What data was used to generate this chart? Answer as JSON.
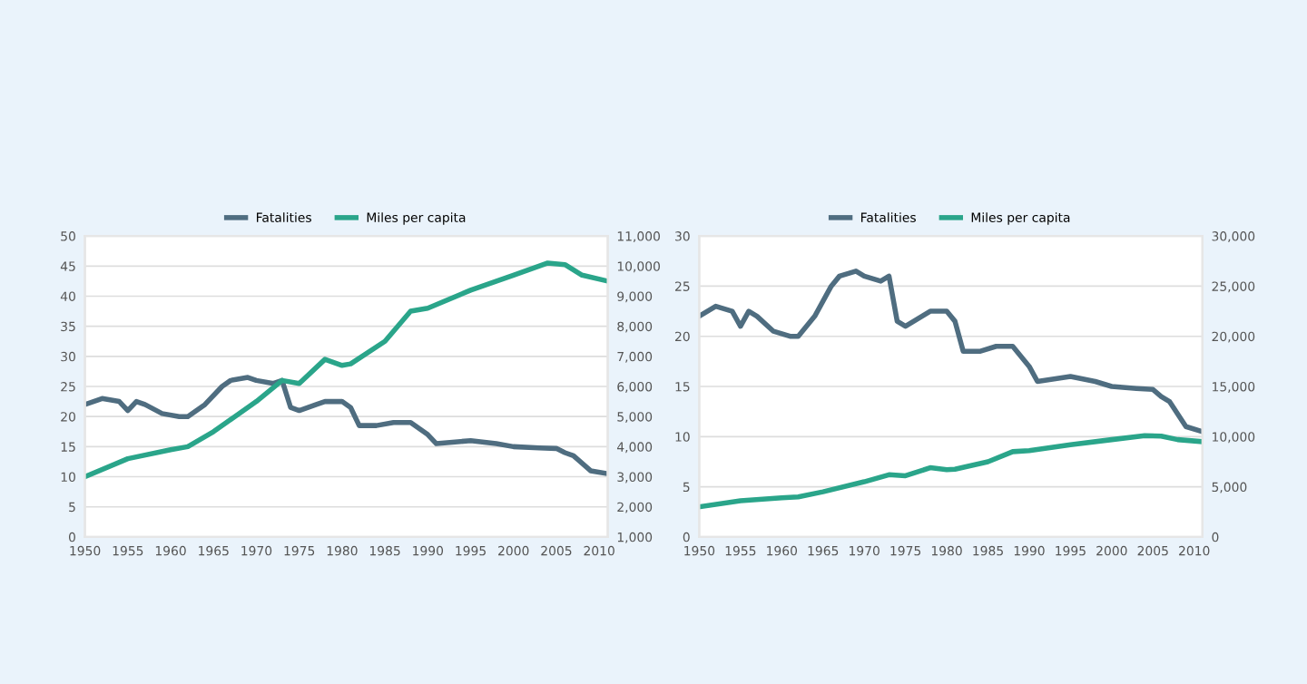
{
  "chart_data": [
    {
      "type": "line",
      "x": [
        1950,
        1952,
        1954,
        1955,
        1956,
        1957,
        1959,
        1961,
        1962,
        1964,
        1966,
        1967,
        1969,
        1970,
        1972,
        1973,
        1974,
        1975,
        1977,
        1978,
        1980,
        1981,
        1982,
        1984,
        1986,
        1988,
        1990,
        1991,
        1995,
        1998,
        2000,
        2003,
        2005,
        2006,
        2007,
        2009,
        2011
      ],
      "xlim": [
        1950,
        2011
      ],
      "xticks": [
        1950,
        1955,
        1960,
        1965,
        1970,
        1975,
        1980,
        1985,
        1990,
        1995,
        2000,
        2005,
        2010
      ],
      "ylim": [
        0,
        50
      ],
      "yticks": [
        0,
        5,
        10,
        15,
        20,
        25,
        30,
        35,
        40,
        45,
        50
      ],
      "y2lim": [
        1000,
        11000
      ],
      "y2ticks": [
        {
          "value": 1000,
          "label": "1,000"
        },
        {
          "value": 2000,
          "label": "2,000"
        },
        {
          "value": 3000,
          "label": "3,000"
        },
        {
          "value": 4000,
          "label": "4,000"
        },
        {
          "value": 5000,
          "label": "5,000"
        },
        {
          "value": 6000,
          "label": "6,000"
        },
        {
          "value": 7000,
          "label": "7,000"
        },
        {
          "value": 8000,
          "label": "8,000"
        },
        {
          "value": 9000,
          "label": "9,000"
        },
        {
          "value": 10000,
          "label": "10,000"
        },
        {
          "value": 11000,
          "label": "11,000"
        }
      ],
      "grid": "y",
      "legend": "top",
      "series": [
        {
          "name": "Fatalities",
          "color": "#4f6d80",
          "axis": "y",
          "values": [
            22,
            23,
            22.5,
            21,
            22.5,
            22,
            20.5,
            20,
            20,
            22,
            25,
            26,
            26.5,
            26,
            25.5,
            26,
            21.5,
            21,
            22,
            22.5,
            22.5,
            21.5,
            18.5,
            18.5,
            19,
            19,
            17,
            15.5,
            16,
            15.5,
            15,
            14.8,
            14.7,
            14,
            13.5,
            11,
            10.5
          ]
        },
        {
          "name": "Miles per capita",
          "color": "#2aa58a",
          "axis": "y2",
          "x": [
            1950,
            1955,
            1960,
            1962,
            1965,
            1970,
            1973,
            1975,
            1978,
            1980,
            1981,
            1985,
            1988,
            1990,
            1995,
            2000,
            2004,
            2006,
            2008,
            2011
          ],
          "values": [
            3000,
            3600,
            3900,
            4000,
            4500,
            5500,
            6200,
            6100,
            6900,
            6700,
            6750,
            7500,
            8500,
            8600,
            9200,
            9700,
            10100,
            10050,
            9700,
            9500
          ]
        }
      ]
    },
    {
      "type": "line",
      "x": [
        1950,
        1952,
        1954,
        1955,
        1956,
        1957,
        1959,
        1961,
        1962,
        1964,
        1966,
        1967,
        1969,
        1970,
        1972,
        1973,
        1974,
        1975,
        1977,
        1978,
        1980,
        1981,
        1982,
        1984,
        1986,
        1988,
        1990,
        1991,
        1995,
        1998,
        2000,
        2003,
        2005,
        2006,
        2007,
        2009,
        2011
      ],
      "xlim": [
        1950,
        2011
      ],
      "xticks": [
        1950,
        1955,
        1960,
        1965,
        1970,
        1975,
        1980,
        1985,
        1990,
        1995,
        2000,
        2005,
        2010
      ],
      "ylim": [
        0,
        30
      ],
      "yticks": [
        0,
        5,
        10,
        15,
        20,
        25,
        30
      ],
      "y2lim": [
        0,
        30000
      ],
      "y2ticks": [
        0,
        {
          "value": 5000,
          "label": "5,000"
        },
        {
          "value": 10000,
          "label": "10,000"
        },
        {
          "value": 15000,
          "label": "15,000"
        },
        {
          "value": 20000,
          "label": "20,000"
        },
        {
          "value": 25000,
          "label": "25,000"
        },
        {
          "value": 30000,
          "label": "30,000"
        }
      ],
      "grid": "y",
      "legend": "top",
      "series": [
        {
          "name": "Fatalities",
          "color": "#4f6d80",
          "axis": "y",
          "values": [
            22,
            23,
            22.5,
            21,
            22.5,
            22,
            20.5,
            20,
            20,
            22,
            25,
            26,
            26.5,
            26,
            25.5,
            26,
            21.5,
            21,
            22,
            22.5,
            22.5,
            21.5,
            18.5,
            18.5,
            19,
            19,
            17,
            15.5,
            16,
            15.5,
            15,
            14.8,
            14.7,
            14,
            13.5,
            11,
            10.5
          ]
        },
        {
          "name": "Miles per capita",
          "color": "#2aa58a",
          "axis": "y2",
          "x": [
            1950,
            1955,
            1960,
            1962,
            1965,
            1970,
            1973,
            1975,
            1978,
            1980,
            1981,
            1985,
            1988,
            1990,
            1995,
            2000,
            2004,
            2006,
            2008,
            2011
          ],
          "values": [
            3000,
            3600,
            3900,
            4000,
            4500,
            5500,
            6200,
            6100,
            6900,
            6700,
            6750,
            7500,
            8500,
            8600,
            9200,
            9700,
            10100,
            10050,
            9700,
            9500
          ]
        }
      ]
    }
  ]
}
